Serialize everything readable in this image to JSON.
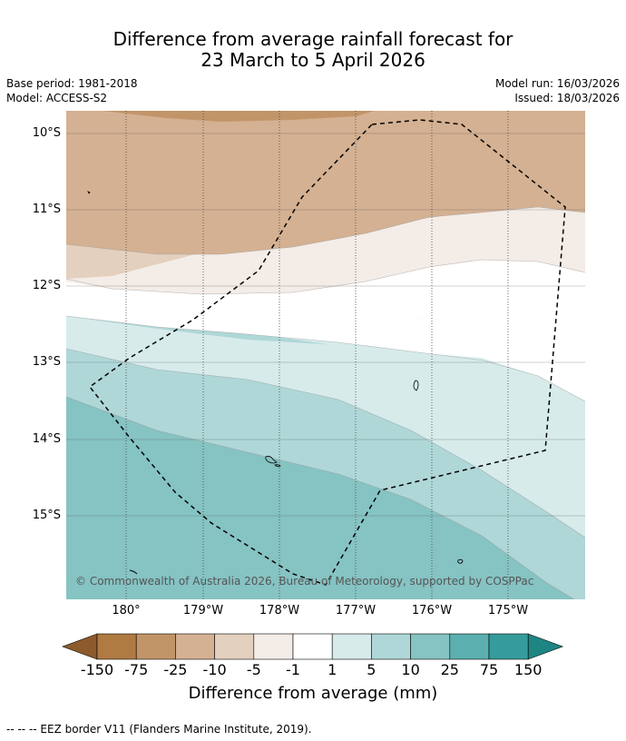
{
  "title": {
    "line1": "Difference from average rainfall forecast for",
    "line2": "23 March to 5 April 2026"
  },
  "info_left": {
    "base_period": "Base period: 1981-2018",
    "model": "Model: ACCESS-S2"
  },
  "info_right": {
    "model_run": "Model run: 16/03/2026",
    "issued": "Issued: 18/03/2026"
  },
  "map": {
    "lat_labels": [
      "10°S",
      "11°S",
      "12°S",
      "13°S",
      "14°S",
      "15°S"
    ],
    "lon_labels": [
      "180°",
      "179°W",
      "178°W",
      "177°W",
      "176°W",
      "175°W"
    ],
    "copyright": "© Commonwealth of Australia 2026, Bureau of Meteorology, supported by COSPPac"
  },
  "colorbar": {
    "ticks": [
      "-150",
      "-75",
      "-25",
      "-10",
      "-5",
      "-1",
      "1",
      "5",
      "10",
      "25",
      "75",
      "150"
    ],
    "colors": [
      "#8c5a2b",
      "#b07a43",
      "#c29569",
      "#d4b192",
      "#e4d0be",
      "#f4ece7",
      "#ffffff",
      "#d7ebeb",
      "#afd7d8",
      "#86c3c3",
      "#5bafaf",
      "#359c9b",
      "#1e8583"
    ],
    "title": "Difference from average (mm)"
  },
  "footer": "--  --  -- EEZ border V11 (Flanders Marine Institute, 2019)."
}
